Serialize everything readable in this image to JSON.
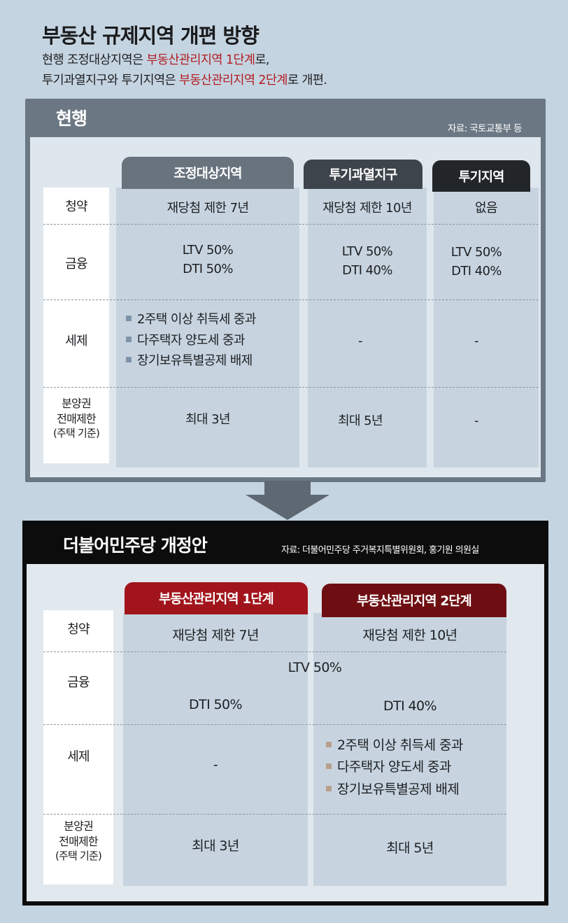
{
  "header": {
    "title": "부동산 규제지역 개편 방향",
    "sub1_a": "현행 조정대상지역은 ",
    "sub1_b": "부동산관리지역 1단계",
    "sub1_c": "로,",
    "sub2_a": "투기과열지구와 투기지역은 ",
    "sub2_b": "부동산관리지역 2단계",
    "sub2_c": "로 개편."
  },
  "current": {
    "title": "현행",
    "source": "자료: 국토교통부 등",
    "tabs": [
      "조정대상지역",
      "투기과열지구",
      "투기지역"
    ],
    "row_labels": {
      "subscription": "청약",
      "finance": "금융",
      "tax": "세제",
      "resale_1": "분양권",
      "resale_2": "전매제한",
      "resale_3": "(주택 기준)"
    },
    "subscription": [
      "재당첨 제한 7년",
      "재당첨 제한 10년",
      "없음"
    ],
    "finance": [
      {
        "ltv": "LTV 50%",
        "dti": "DTI 50%"
      },
      {
        "ltv": "LTV 50%",
        "dti": "DTI 40%"
      },
      {
        "ltv": "LTV 50%",
        "dti": "DTI 40%"
      }
    ],
    "tax_items": [
      "2주택 이상 취득세 중과",
      "다주택자 양도세 중과",
      "장기보유특별공제 배제"
    ],
    "tax_other": [
      "-",
      "-"
    ],
    "resale": [
      "최대 3년",
      "최대 5년",
      "-"
    ]
  },
  "proposal": {
    "title": "더불어민주당 개정안",
    "source": "자료: 더불어민주당 주거복지특별위원회, 홍기원 의원실",
    "tabs": [
      "부동산관리지역 1단계",
      "부동산관리지역 2단계"
    ],
    "row_labels": {
      "subscription": "청약",
      "finance": "금융",
      "tax": "세제",
      "resale_1": "분양권",
      "resale_2": "전매제한",
      "resale_3": "(주택 기준)"
    },
    "subscription": [
      "재당첨 제한 7년",
      "재당첨 제한 10년"
    ],
    "finance_ltv": "LTV 50%",
    "finance_dti": [
      "DTI 50%",
      "DTI 40%"
    ],
    "tax_stage1": "-",
    "tax_items": [
      "2주택 이상 취득세 중과",
      "다주택자 양도세 중과",
      "장기보유특별공제 배제"
    ],
    "resale": [
      "최대 3년",
      "최대 5년"
    ]
  },
  "colors": {
    "highlight_red": "#b11e22",
    "tab_stage1": "#a1141b",
    "tab_stage2": "#6e0e12",
    "bullet_blue": "#7f93a8",
    "bullet_tan": "#b8a08c"
  }
}
